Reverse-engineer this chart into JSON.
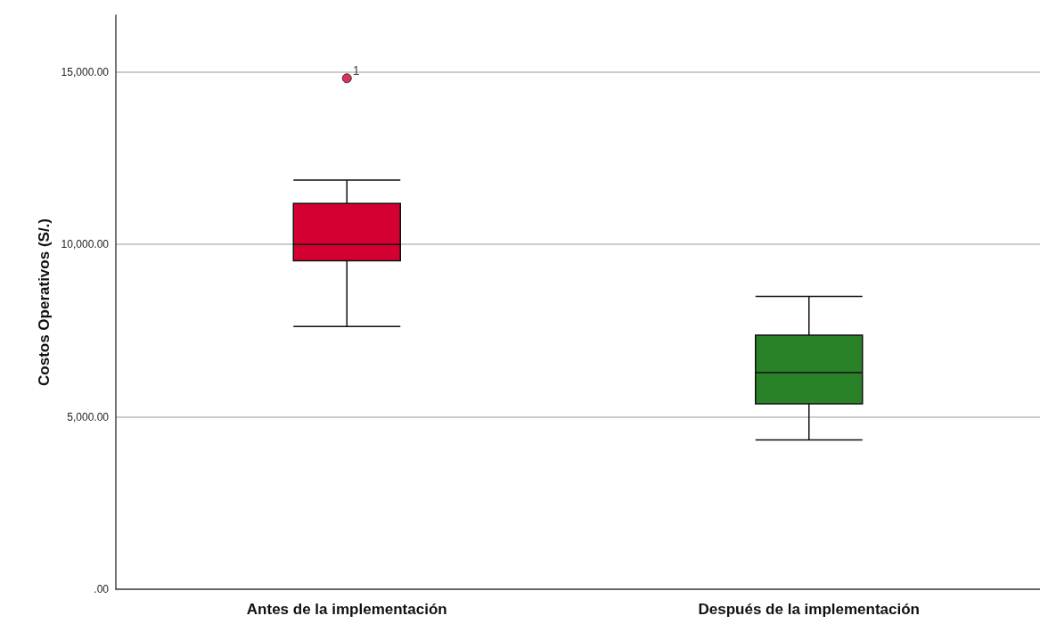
{
  "chart_data": {
    "type": "box",
    "ylabel": "Costos Operativos (S/.)",
    "categories": [
      "Antes de la implementación",
      "Después de la implementación"
    ],
    "boxes": [
      {
        "low": 7620,
        "q1": 9530,
        "median": 10000,
        "q3": 11190,
        "high": 11870,
        "outliers": [
          14820
        ]
      },
      {
        "low": 4330,
        "q1": 5380,
        "median": 6280,
        "q3": 7370,
        "high": 8490
      }
    ],
    "colors": [
      "#d50032",
      "#2a8228"
    ],
    "ylim": [
      0,
      16650
    ],
    "yticks": [
      {
        "value": 0,
        "label": ".00"
      },
      {
        "value": 5000,
        "label": "5,000.00"
      },
      {
        "value": 10000,
        "label": "10,000.00"
      },
      {
        "value": 15000,
        "label": "15,000.00"
      }
    ],
    "grid": "y",
    "annotations": [
      "1"
    ]
  }
}
